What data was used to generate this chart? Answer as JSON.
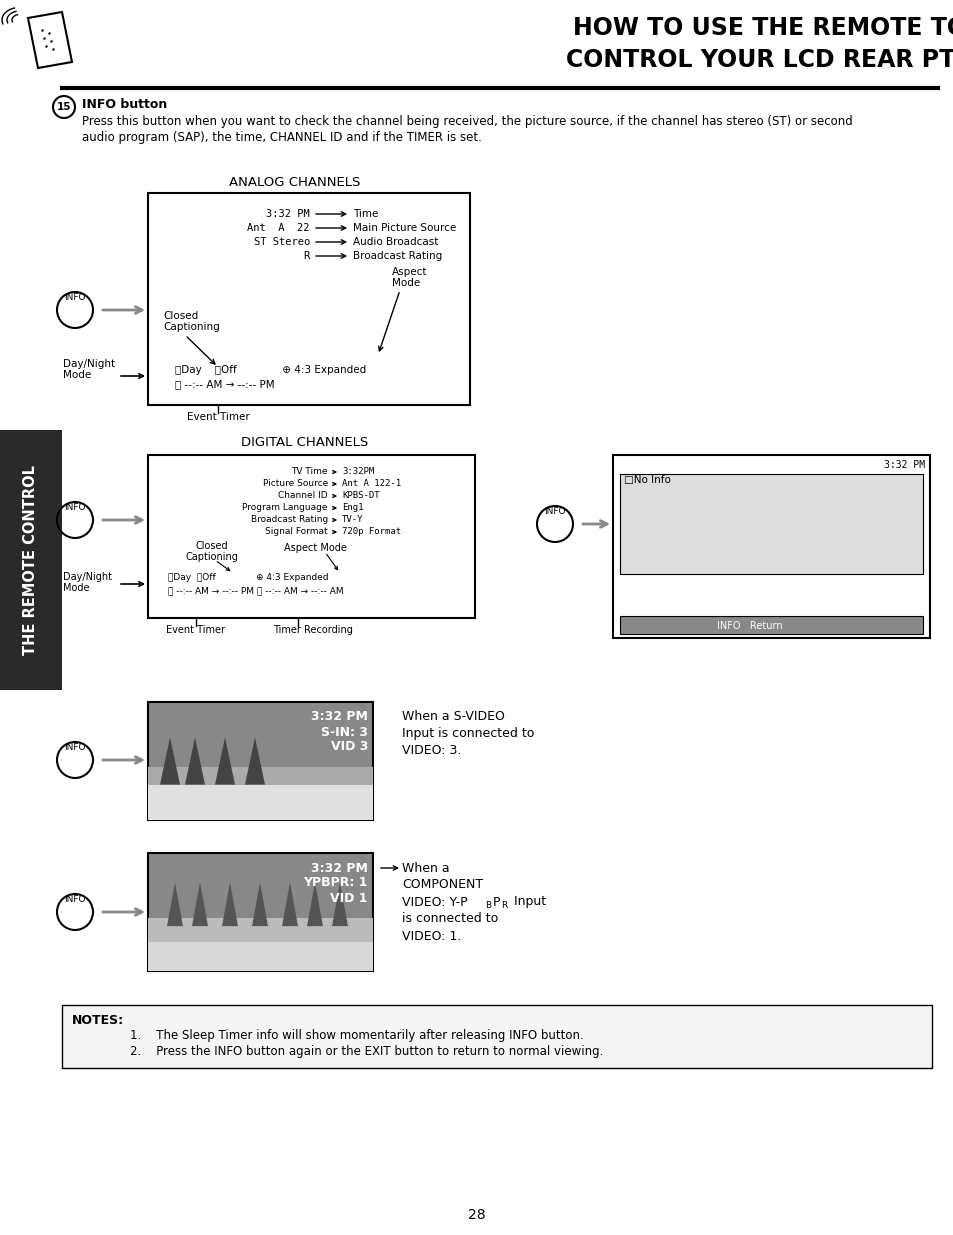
{
  "title_line1": "HOW TO USE THE REMOTE TO",
  "title_line2": "CONTROL YOUR LCD REAR PTV",
  "bg_color": "#ffffff",
  "analog_title": "ANALOG CHANNELS",
  "digital_title": "DIGITAL CHANNELS",
  "sidebar_text": "THE REMOTE CONTROL",
  "notes_title": "NOTES:",
  "note1": "1.    The Sleep Timer info will show momentarily after releasing INFO button.",
  "note2": "2.    Press the INFO button again or the EXIT button to return to normal viewing.",
  "page_number": "28",
  "section15_body1": "Press this button when you want to check the channel being received, the picture source, if the channel has stereo (ST) or second",
  "section15_body2": "audio program (SAP), the time, CHANNEL ID and if the TIMER is set."
}
